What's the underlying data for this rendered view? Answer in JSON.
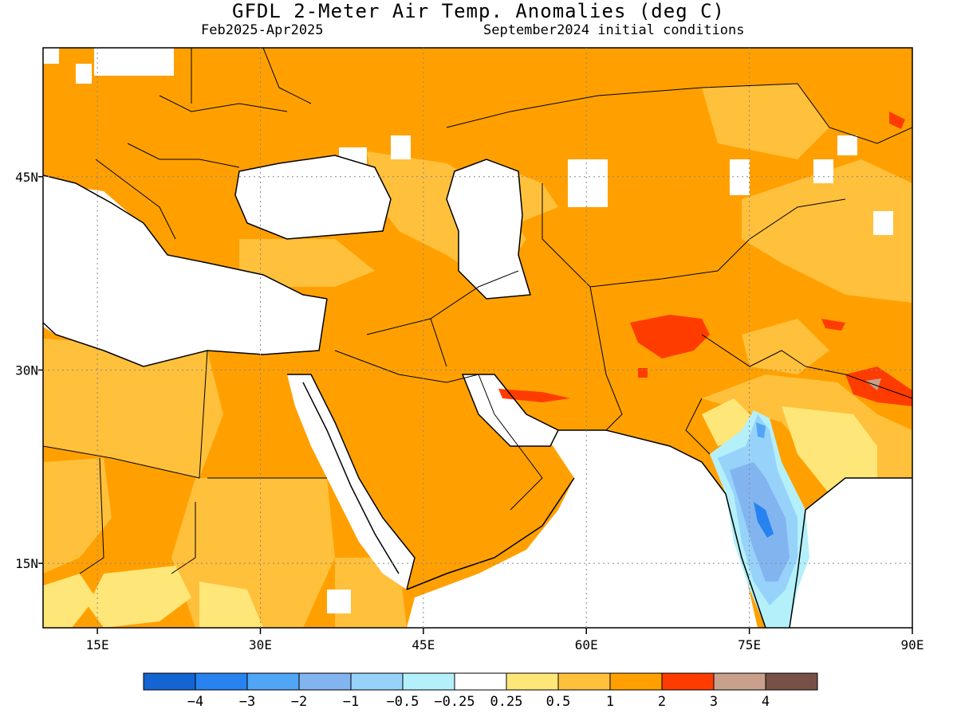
{
  "title": "GFDL 2-Meter Air Temp. Anomalies (deg C)",
  "period": "Feb2025-Apr2025",
  "init": "September2024 initial conditions",
  "lon_ticks": [
    "15E",
    "30E",
    "45E",
    "60E",
    "75E",
    "90E"
  ],
  "lon_values": [
    15,
    30,
    45,
    60,
    75,
    90
  ],
  "lat_ticks": [
    "45N",
    "30N",
    "15N"
  ],
  "lat_values": [
    45,
    30,
    15
  ],
  "extent": {
    "lon_min": 10,
    "lon_max": 90,
    "lat_min": 10,
    "lat_max": 55
  },
  "colorbar": {
    "colors": [
      "#1464d2",
      "#2882f0",
      "#50a5f5",
      "#82b4f0",
      "#96d2fa",
      "#b4f0fa",
      "#ffffff",
      "#ffe678",
      "#ffc03c",
      "#ffa000",
      "#ff3c00",
      "#c8a08c",
      "#785046"
    ],
    "labels": [
      "-4",
      "-3",
      "-2",
      "-1",
      "-0.5",
      "-0.25",
      "0.25",
      "0.5",
      "1",
      "2",
      "3",
      "4"
    ]
  },
  "legend": {
    "colors": {
      "orange": "#ffa000",
      "light_orange": "#ffc03c",
      "pale_yellow": "#ffe678",
      "red": "#ff3c00",
      "light_blue": "#82b4f0",
      "blue": "#50a5f5",
      "cyan": "#b4f0fa",
      "pale_blue": "#96d2fa"
    }
  }
}
